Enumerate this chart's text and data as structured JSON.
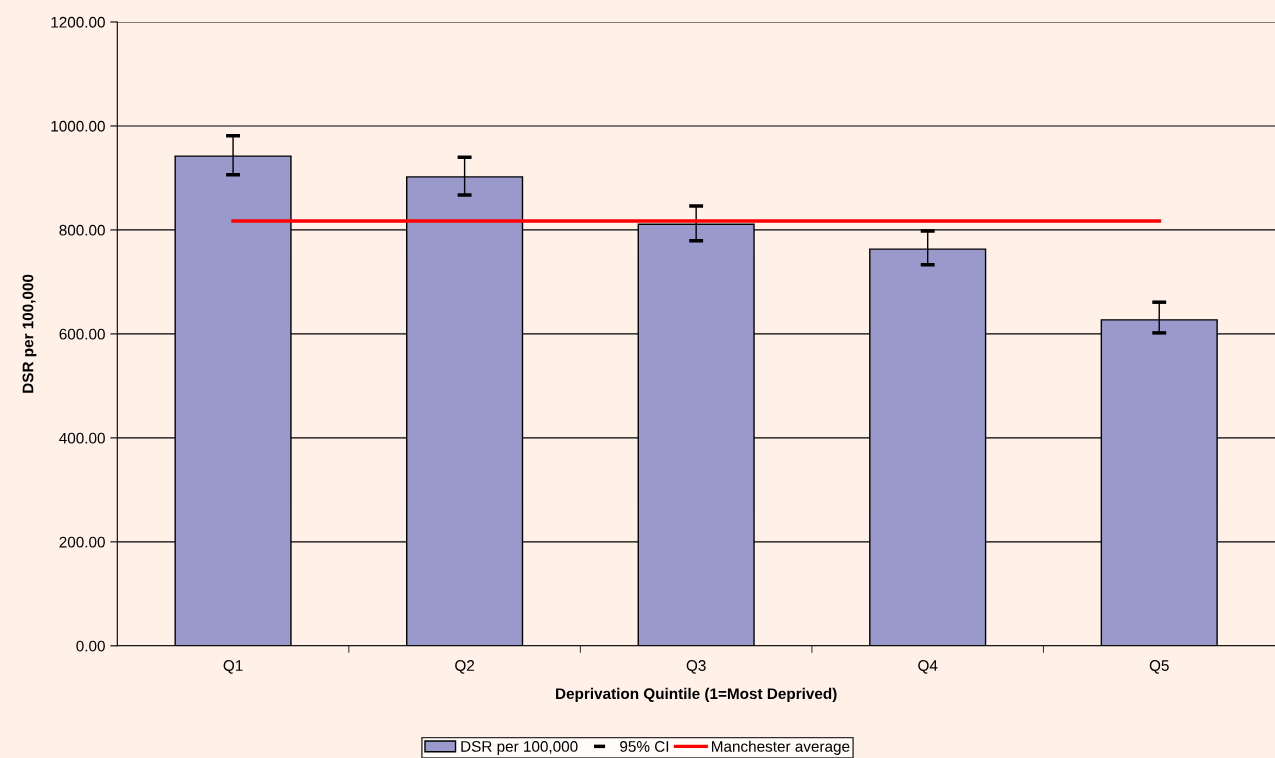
{
  "chart_data": {
    "type": "bar",
    "xlabel": "Deprivation Quintile (1=Most Deprived)",
    "ylabel": "DSR per 100,000",
    "categories": [
      "Q1",
      "Q2",
      "Q3",
      "Q4",
      "Q5"
    ],
    "series": [
      {
        "name": "DSR per 100,000",
        "color": "#9999cc",
        "values": [
          942,
          902,
          811,
          763,
          627
        ],
        "errors": [
          [
            906,
            981
          ],
          [
            867,
            940
          ],
          [
            779,
            846
          ],
          [
            733,
            798
          ],
          [
            602,
            661
          ]
        ]
      },
      {
        "name": "Manchester average",
        "type": "line",
        "color": "#ff0000",
        "values": [
          817,
          817,
          817,
          817,
          817
        ]
      }
    ],
    "annotations": [
      "95% CI"
    ],
    "ylim": [
      0,
      1200
    ],
    "yticks": [
      {
        "value": 0,
        "label": "0.00"
      },
      {
        "value": 200,
        "label": "200.00"
      },
      {
        "value": 400,
        "label": "400.00"
      },
      {
        "value": 600,
        "label": "600.00"
      },
      {
        "value": 800,
        "label": "800.00"
      },
      {
        "value": 1000,
        "label": "1000.00"
      },
      {
        "value": 1200,
        "label": "1200.00"
      }
    ],
    "grid": "y",
    "legend": "bottom"
  }
}
